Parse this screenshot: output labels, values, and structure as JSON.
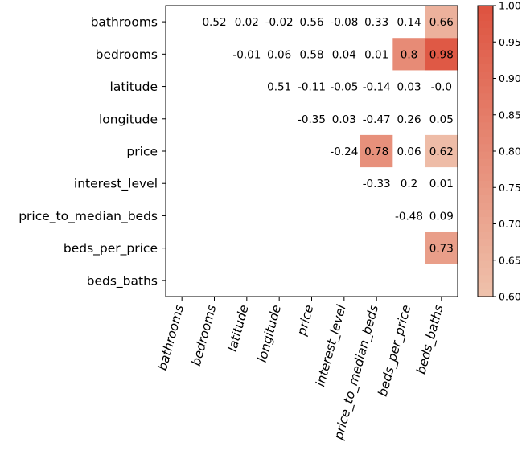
{
  "chart_data": {
    "type": "heatmap",
    "title": "",
    "xlabel": "",
    "ylabel": "",
    "row_labels": [
      "bathrooms",
      "bedrooms",
      "latitude",
      "longitude",
      "price",
      "interest_level",
      "price_to_median_beds",
      "beds_per_price",
      "beds_baths"
    ],
    "col_labels": [
      "bathrooms",
      "bedrooms",
      "latitude",
      "longitude",
      "price",
      "interest_level",
      "price_to_median_beds",
      "beds_per_price",
      "beds_baths"
    ],
    "cells": [
      {
        "row": 0,
        "col": 1,
        "label": "0.52",
        "value": 0.52
      },
      {
        "row": 0,
        "col": 2,
        "label": "0.02",
        "value": 0.02
      },
      {
        "row": 0,
        "col": 3,
        "label": "-0.02",
        "value": -0.02
      },
      {
        "row": 0,
        "col": 4,
        "label": "0.56",
        "value": 0.56
      },
      {
        "row": 0,
        "col": 5,
        "label": "-0.08",
        "value": -0.08
      },
      {
        "row": 0,
        "col": 6,
        "label": "0.33",
        "value": 0.33
      },
      {
        "row": 0,
        "col": 7,
        "label": "0.14",
        "value": 0.14
      },
      {
        "row": 0,
        "col": 8,
        "label": "0.66",
        "value": 0.66
      },
      {
        "row": 1,
        "col": 2,
        "label": "-0.01",
        "value": -0.01
      },
      {
        "row": 1,
        "col": 3,
        "label": "0.06",
        "value": 0.06
      },
      {
        "row": 1,
        "col": 4,
        "label": "0.58",
        "value": 0.58
      },
      {
        "row": 1,
        "col": 5,
        "label": "0.04",
        "value": 0.04
      },
      {
        "row": 1,
        "col": 6,
        "label": "0.01",
        "value": 0.01
      },
      {
        "row": 1,
        "col": 7,
        "label": "0.8",
        "value": 0.8
      },
      {
        "row": 1,
        "col": 8,
        "label": "0.98",
        "value": 0.98
      },
      {
        "row": 2,
        "col": 3,
        "label": "0.51",
        "value": 0.51
      },
      {
        "row": 2,
        "col": 4,
        "label": "-0.11",
        "value": -0.11
      },
      {
        "row": 2,
        "col": 5,
        "label": "-0.05",
        "value": -0.05
      },
      {
        "row": 2,
        "col": 6,
        "label": "-0.14",
        "value": -0.14
      },
      {
        "row": 2,
        "col": 7,
        "label": "0.03",
        "value": 0.03
      },
      {
        "row": 2,
        "col": 8,
        "label": "-0.0",
        "value": 0.0
      },
      {
        "row": 3,
        "col": 4,
        "label": "-0.35",
        "value": -0.35
      },
      {
        "row": 3,
        "col": 5,
        "label": "0.03",
        "value": 0.03
      },
      {
        "row": 3,
        "col": 6,
        "label": "-0.47",
        "value": -0.47
      },
      {
        "row": 3,
        "col": 7,
        "label": "0.26",
        "value": 0.26
      },
      {
        "row": 3,
        "col": 8,
        "label": "0.05",
        "value": 0.05
      },
      {
        "row": 4,
        "col": 5,
        "label": "-0.24",
        "value": -0.24
      },
      {
        "row": 4,
        "col": 6,
        "label": "0.78",
        "value": 0.78
      },
      {
        "row": 4,
        "col": 7,
        "label": "0.06",
        "value": 0.06
      },
      {
        "row": 4,
        "col": 8,
        "label": "0.62",
        "value": 0.62
      },
      {
        "row": 5,
        "col": 6,
        "label": "-0.33",
        "value": -0.33
      },
      {
        "row": 5,
        "col": 7,
        "label": "0.2",
        "value": 0.2
      },
      {
        "row": 5,
        "col": 8,
        "label": "0.01",
        "value": 0.01
      },
      {
        "row": 6,
        "col": 7,
        "label": "-0.48",
        "value": -0.48
      },
      {
        "row": 6,
        "col": 8,
        "label": "0.09",
        "value": 0.09
      },
      {
        "row": 7,
        "col": 8,
        "label": "0.73",
        "value": 0.73
      }
    ],
    "colorbar": {
      "min": 0.6,
      "max": 1.0,
      "ticks": [
        "0.60",
        "0.65",
        "0.70",
        "0.75",
        "0.80",
        "0.85",
        "0.90",
        "0.95",
        "1.00"
      ],
      "tick_values": [
        0.6,
        0.65,
        0.7,
        0.75,
        0.8,
        0.85,
        0.9,
        0.95,
        1.0
      ],
      "color_low": "#EFC2AC",
      "color_high": "#DE5340"
    },
    "grid": false
  }
}
